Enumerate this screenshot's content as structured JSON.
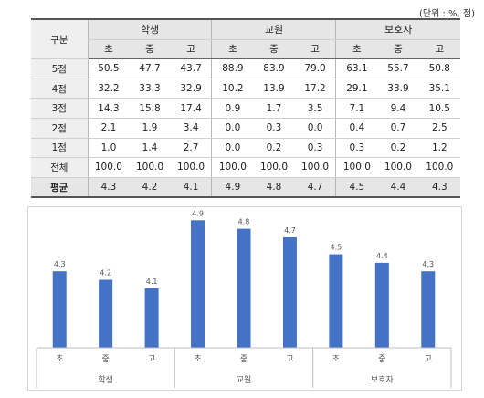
{
  "unit_note": "(단위 : %, 점)",
  "table": {
    "corner": "구분",
    "groups": [
      "학생",
      "교원",
      "보호자"
    ],
    "subheaders": [
      "초",
      "중",
      "고",
      "초",
      "중",
      "고",
      "초",
      "중",
      "고"
    ],
    "rows": [
      {
        "label": "5점",
        "values": [
          "50.5",
          "47.7",
          "43.7",
          "88.9",
          "83.9",
          "79.0",
          "63.1",
          "55.7",
          "50.8"
        ]
      },
      {
        "label": "4점",
        "values": [
          "32.2",
          "33.3",
          "32.9",
          "10.2",
          "13.9",
          "17.2",
          "29.1",
          "33.9",
          "35.1"
        ]
      },
      {
        "label": "3점",
        "values": [
          "14.3",
          "15.8",
          "17.4",
          "0.9",
          "1.7",
          "3.5",
          "7.1",
          "9.4",
          "10.5"
        ]
      },
      {
        "label": "2점",
        "values": [
          "2.1",
          "1.9",
          "3.4",
          "0.0",
          "0.3",
          "0.0",
          "0.4",
          "0.7",
          "2.5"
        ]
      },
      {
        "label": "1점",
        "values": [
          "1.0",
          "1.4",
          "2.7",
          "0.0",
          "0.2",
          "0.3",
          "0.3",
          "0.2",
          "1.2"
        ]
      },
      {
        "label": "전체",
        "values": [
          "100.0",
          "100.0",
          "100.0",
          "100.0",
          "100.0",
          "100.0",
          "100.0",
          "100.0",
          "100.0"
        ]
      }
    ],
    "average": {
      "label": "평균",
      "values": [
        "4.3",
        "4.2",
        "4.1",
        "4.9",
        "4.8",
        "4.7",
        "4.5",
        "4.4",
        "4.3"
      ]
    }
  },
  "chart_data": {
    "type": "bar",
    "categories": [
      "초",
      "중",
      "고",
      "초",
      "중",
      "고",
      "초",
      "중",
      "고"
    ],
    "groups": [
      "학생",
      "교원",
      "보호자"
    ],
    "values": [
      4.3,
      4.2,
      4.1,
      4.9,
      4.8,
      4.7,
      4.5,
      4.4,
      4.3
    ],
    "value_labels": [
      "4.3",
      "4.2",
      "4.1",
      "4.9",
      "4.8",
      "4.7",
      "4.5",
      "4.4",
      "4.3"
    ],
    "ylim": [
      3.4,
      5.0
    ],
    "title": "",
    "xlabel": "",
    "ylabel": "",
    "grid": false,
    "bar_color": "#4472c4"
  }
}
